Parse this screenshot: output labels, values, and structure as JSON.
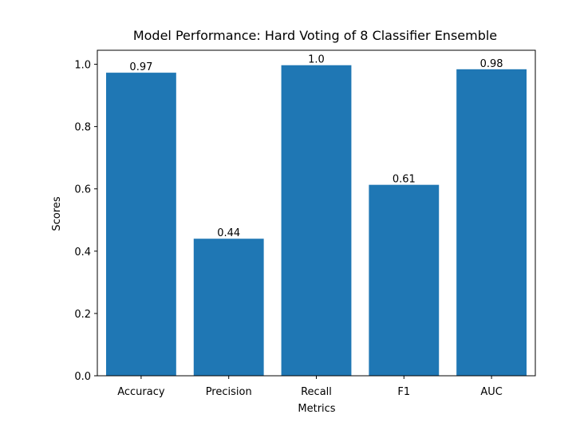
{
  "chart_data": {
    "type": "bar",
    "title": "Model Performance: Hard Voting of 8 Classifier Ensemble",
    "xlabel": "Metrics",
    "ylabel": "Scores",
    "categories": [
      "Accuracy",
      "Precision",
      "Recall",
      "F1",
      "AUC"
    ],
    "values": [
      0.973,
      0.44,
      0.997,
      0.613,
      0.984
    ],
    "data_labels": [
      "0.97",
      "0.44",
      "1.0",
      "0.61",
      "0.98"
    ],
    "ylim": [
      0,
      1.045
    ],
    "yticks": [
      0.0,
      0.2,
      0.4,
      0.6,
      0.8,
      1.0
    ],
    "ytick_labels": [
      "0.0",
      "0.2",
      "0.4",
      "0.6",
      "0.8",
      "1.0"
    ],
    "grid": false,
    "bar_color": "#1f77b4"
  }
}
